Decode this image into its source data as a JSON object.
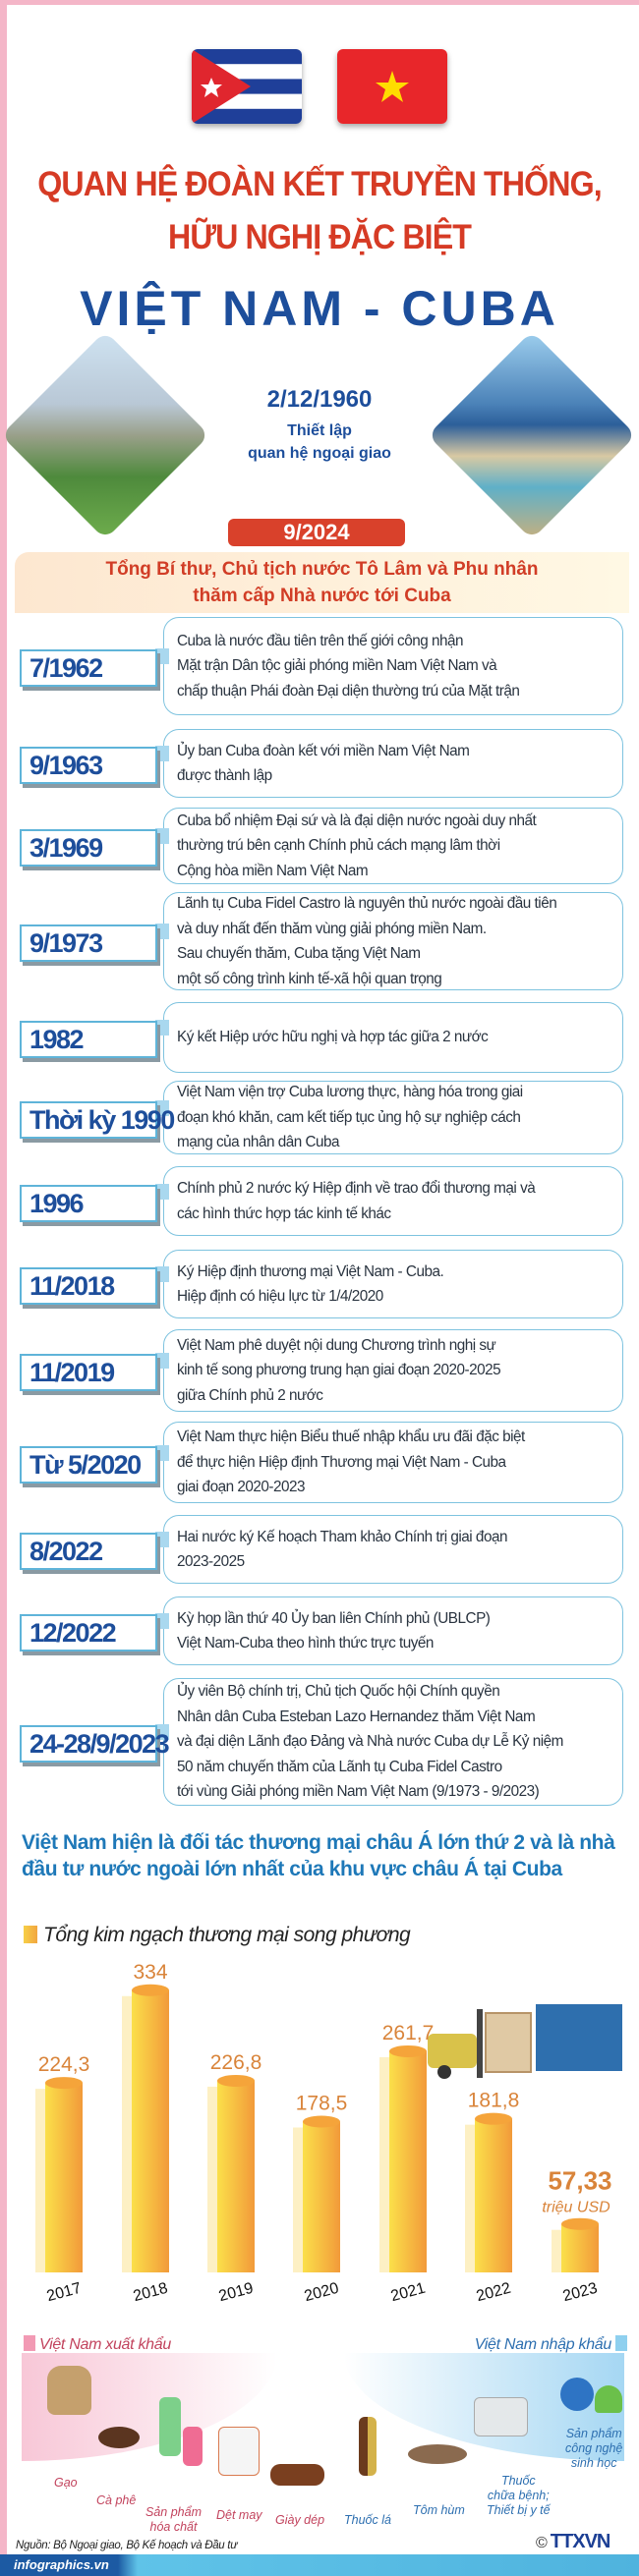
{
  "header": {
    "title_line1": "QUAN HỆ ĐOÀN KẾT TRUYỀN THỐNG,",
    "title_line2": "HỮU NGHỊ ĐẶC BIỆT",
    "title_main": "VIỆT NAM - CUBA",
    "flags": [
      "cuba-flag",
      "vietnam-flag"
    ]
  },
  "establishment": {
    "date": "2/12/1960",
    "line1": "Thiết lập",
    "line2": "quan hệ ngoại giao"
  },
  "highlight": {
    "badge": "9/2024",
    "line1": "Tổng Bí thư, Chủ tịch nước Tô Lâm và Phu nhân",
    "line2": "thăm cấp Nhà nước tới Cuba"
  },
  "timeline": [
    {
      "date": "7/1962",
      "text": "Cuba là nước đầu tiên trên thế giới công nhận\nMặt trận Dân tộc giải phóng miền Nam Việt Nam và\nchấp thuận Phái đoàn Đại diện thường trú của Mặt trận"
    },
    {
      "date": "9/1963",
      "text": "Ủy ban Cuba đoàn kết với miền Nam Việt Nam\nđược thành lập"
    },
    {
      "date": "3/1969",
      "text": "Cuba bổ nhiệm Đại sứ và là đại diện nước ngoài duy nhất\nthường trú bên cạnh Chính phủ cách mạng lâm thời\nCộng hòa miền Nam Việt Nam"
    },
    {
      "date": "9/1973",
      "text": "Lãnh tụ Cuba Fidel Castro là nguyên thủ nước ngoài đầu tiên\nvà duy nhất đến thăm vùng giải phóng miền Nam.\nSau chuyến thăm, Cuba tặng Việt Nam\nmột số công trình kinh tế-xã hội quan trọng"
    },
    {
      "date": "1982",
      "text": "Ký kết Hiệp ước hữu nghị và hợp tác giữa 2 nước"
    },
    {
      "date": "Thời kỳ 1990",
      "text": "Việt Nam viện trợ Cuba lương thực, hàng hóa trong giai\nđoạn khó khăn, cam kết tiếp tục ủng hộ sự nghiệp cách\nmạng của nhân dân Cuba"
    },
    {
      "date": "1996",
      "text": "Chính phủ 2 nước ký Hiệp định về trao đổi thương mại và\ncác hình thức hợp tác kinh tế khác"
    },
    {
      "date": "11/2018",
      "text": "Ký Hiệp định thương mại Việt Nam - Cuba.\nHiệp định có hiệu lực từ 1/4/2020"
    },
    {
      "date": "11/2019",
      "text": "Việt Nam phê duyệt nội dung Chương trình nghị sự\nkinh tế song phương trung hạn giai đoạn 2020-2025\ngiữa Chính phủ 2 nước"
    },
    {
      "date": "Từ 5/2020",
      "text": "Việt Nam thực hiện Biểu thuế nhập khẩu ưu đãi đặc biệt\nđể thực hiện Hiệp định Thương mại Việt Nam - Cuba\ngiai đoạn 2020-2023"
    },
    {
      "date": "8/2022",
      "text": "Hai nước ký Kế hoạch Tham khảo Chính trị giai đoạn\n2023-2025"
    },
    {
      "date": "12/2022",
      "text": "Kỳ họp lần thứ 40 Ủy ban liên Chính phủ (UBLCP)\nViệt Nam-Cuba theo hình thức trực tuyến"
    },
    {
      "date": "24-28/9/2023",
      "text": "Ủy viên Bộ chính trị, Chủ tịch Quốc hội Chính quyền\nNhân dân Cuba Esteban Lazo Hernandez thăm Việt Nam\nvà đại diện Lãnh đạo Đảng và Nhà nước Cuba dự Lễ Kỷ niệm\n50 năm chuyến thăm của Lãnh tụ Cuba Fidel Castro\ntới vùng Giải phóng miền Nam Việt Nam (9/1973 - 9/2023)"
    }
  ],
  "trade": {
    "heading": "Việt Nam hiện là đối tác thương mại châu Á lớn thứ 2 và là nhà đầu tư nước ngoài lớn nhất của khu vực châu Á tại Cuba"
  },
  "chart_data": {
    "type": "bar",
    "title": "Tổng kim ngạch thương mại song phương",
    "categories": [
      "2017",
      "2018",
      "2019",
      "2020",
      "2021",
      "2022",
      "2023"
    ],
    "values": [
      224.3,
      334,
      226.8,
      178.5,
      261.7,
      181.8,
      57.33
    ],
    "value_labels": [
      "224,3",
      "334",
      "226,8",
      "178,5",
      "261,7",
      "181,8",
      "57,33"
    ],
    "unit": "triệu USD",
    "bar_color": "#f6b73c",
    "label_color": "#d9843a"
  },
  "exports": {
    "title": "Việt Nam xuất khẩu",
    "items": [
      "Gạo",
      "Cà phê",
      "Sản phẩm\nhóa chất",
      "Dệt may",
      "Giày dép"
    ]
  },
  "imports": {
    "title": "Việt Nam nhập khẩu",
    "items": [
      "Thuốc lá",
      "Tôm hùm",
      "Thuốc\nchữa bệnh;\nThiết bị y tế",
      "Sản phẩm\ncông nghệ\nsinh học"
    ]
  },
  "footer": {
    "source": "Nguồn: Bộ Ngoại giao, Bộ Kế hoạch và Đầu tư",
    "site": "infographics.vn",
    "copyright": "©",
    "logo": "TTXVN"
  }
}
